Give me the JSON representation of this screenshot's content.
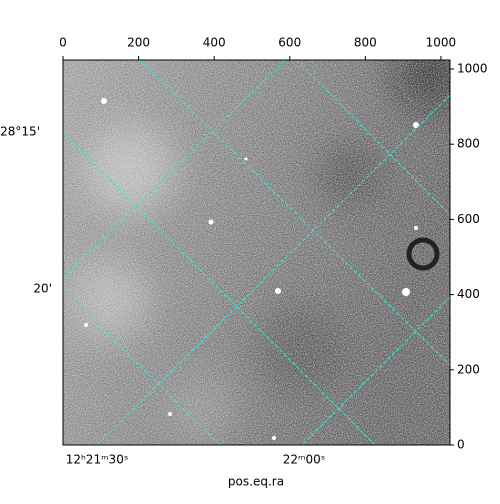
{
  "chart_data": {
    "type": "image",
    "xlabel": "pos.eq.ra",
    "xlim": [
      0,
      1024
    ],
    "xticks": [
      0,
      200,
      400,
      600,
      800,
      1000
    ],
    "ylim": [
      0,
      1024
    ],
    "yticks": [
      0,
      200,
      400,
      600,
      800,
      1000
    ],
    "world_yticks": [
      "28°15'",
      "20'"
    ],
    "world_xticks": [
      "12ʰ21ᵐ30ˢ",
      "22ᵐ00ˢ"
    ],
    "grid_color": "#40e0d0"
  }
}
